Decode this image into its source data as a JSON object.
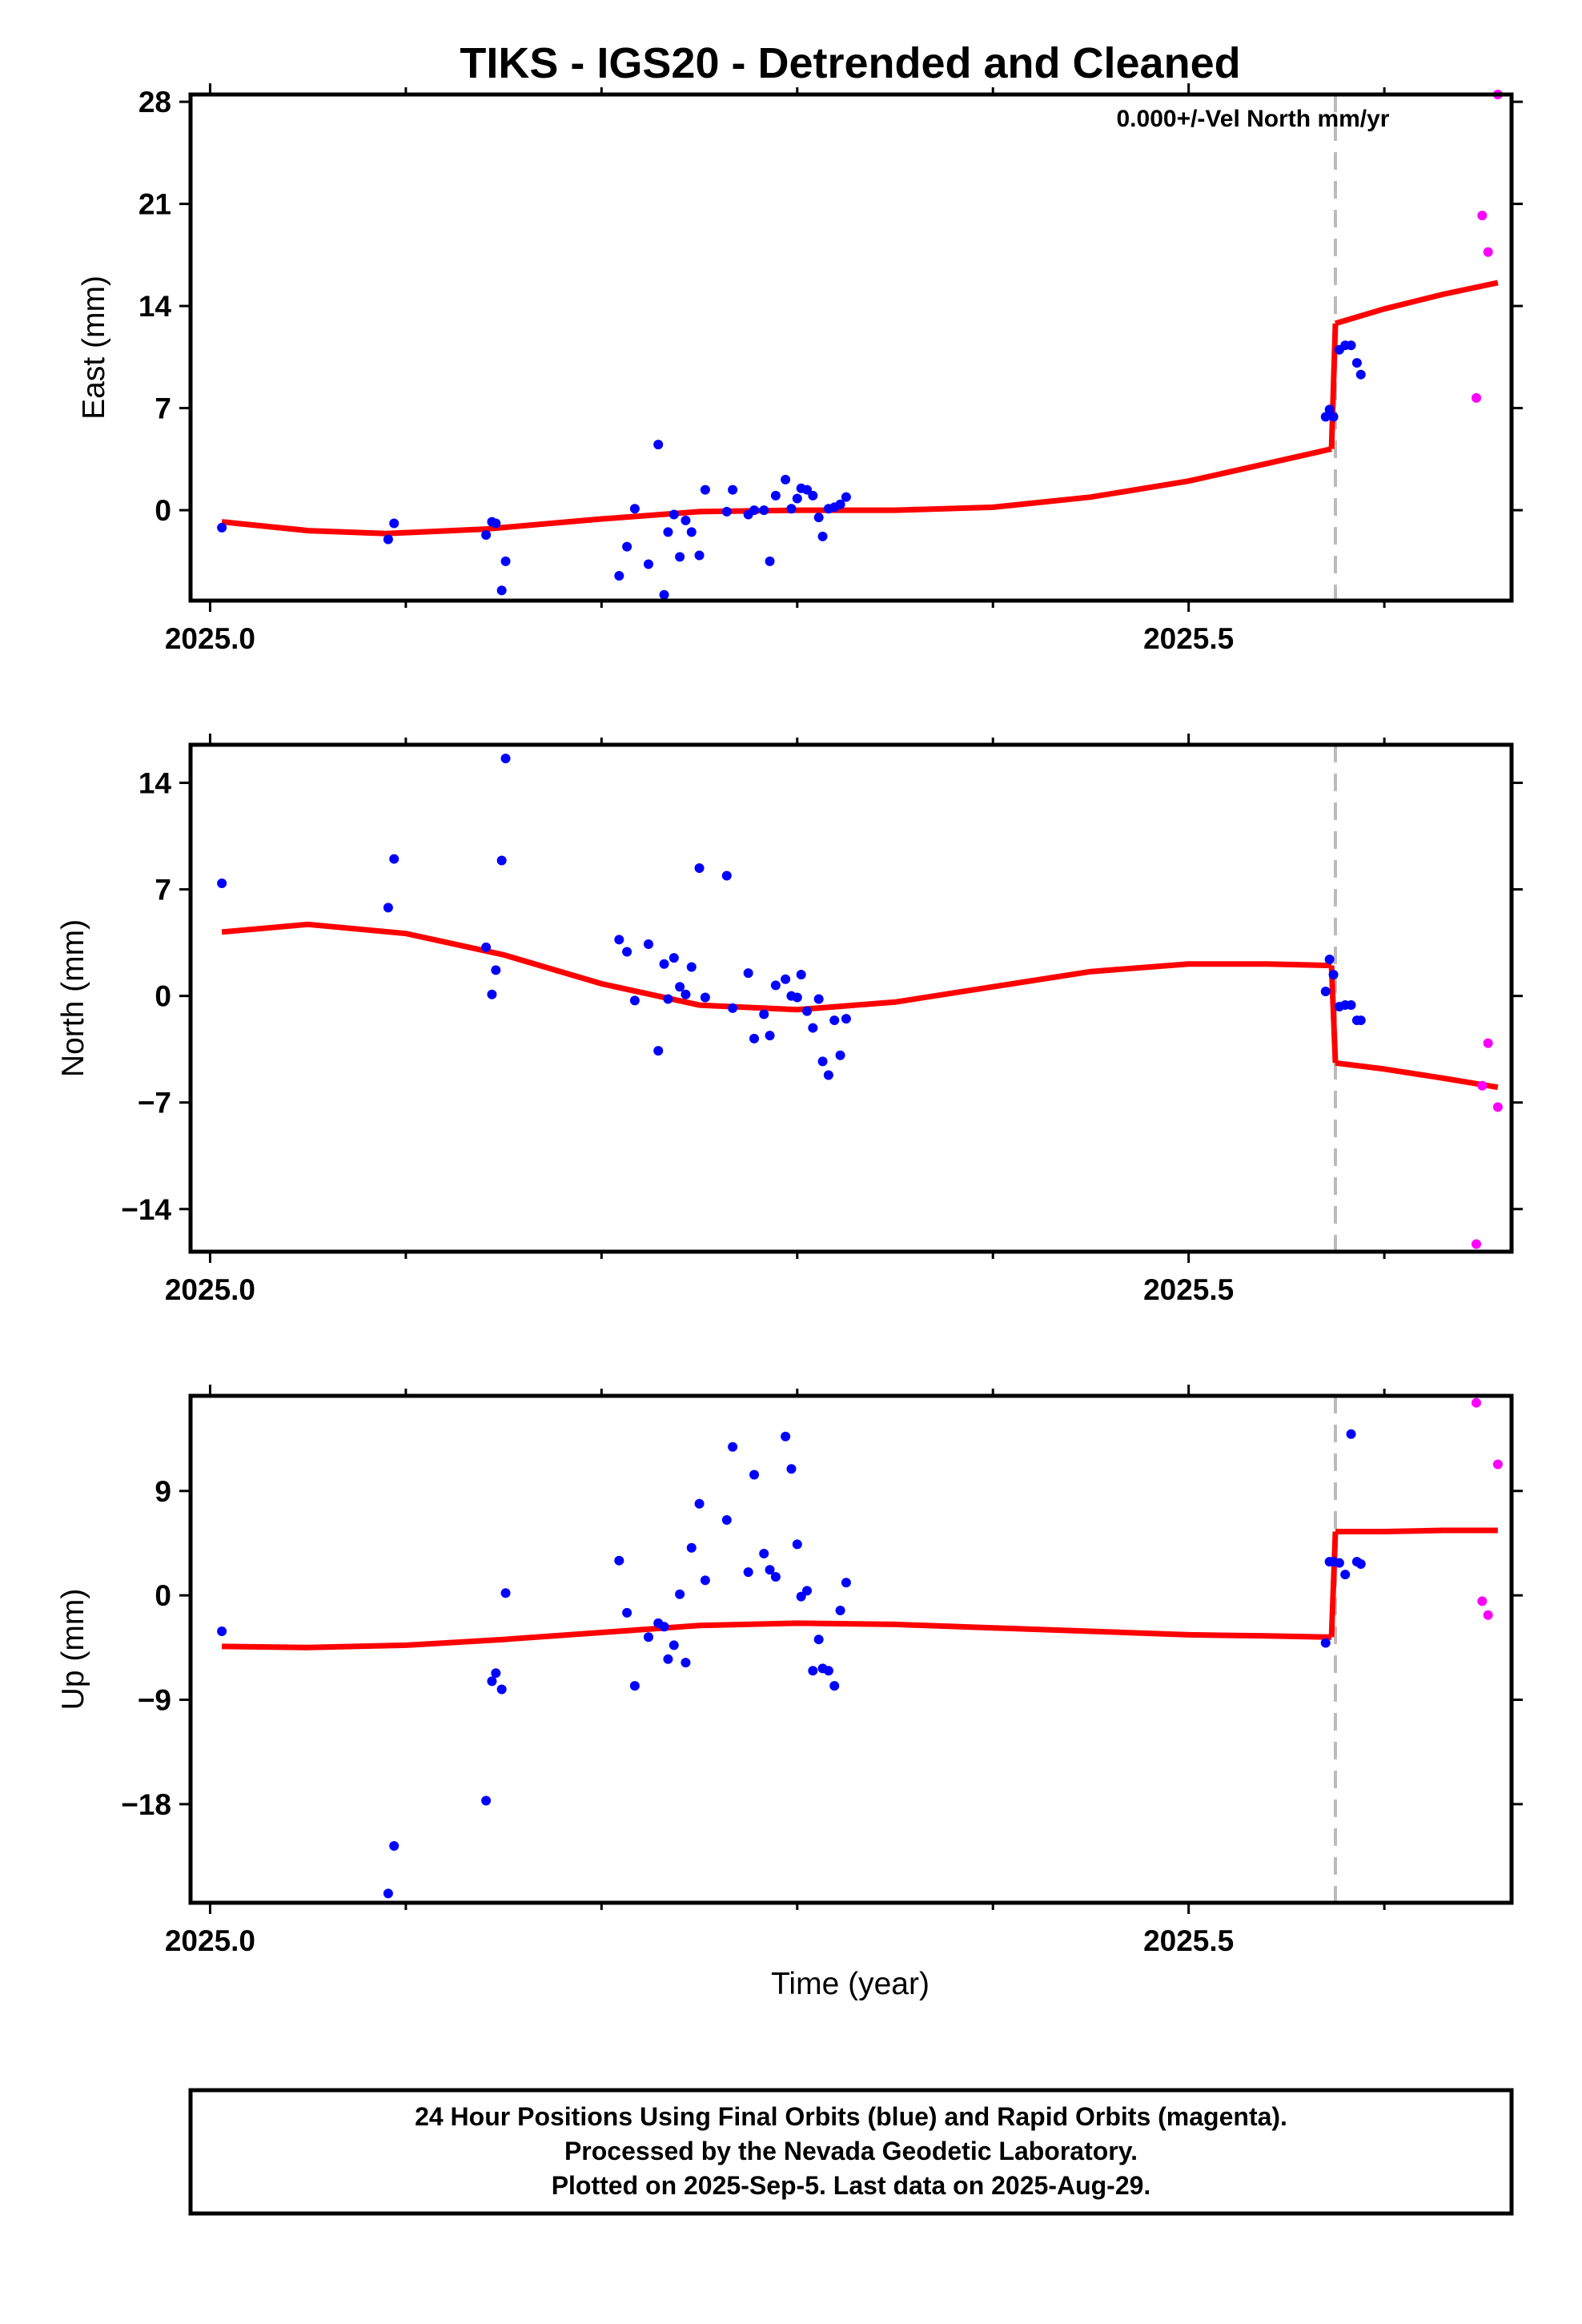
{
  "title": "TIKS - IGS20 - Detrended and Cleaned",
  "annotation": "0.000+/-Vel North mm/yr",
  "xlabel": "Time (year)",
  "footer": {
    "line1": "24 Hour Positions Using Final Orbits (blue) and Rapid Orbits (magenta).",
    "line2": "Processed by the Nevada Geodetic Laboratory.",
    "line3": "Plotted on 2025-Sep-5. Last data on 2025-Aug-29."
  },
  "colors": {
    "final": "#0000ff",
    "rapid": "#ff00ff",
    "model": "#ff0000",
    "event_line": "#bbbbbb"
  },
  "chart_data": [
    {
      "type": "scatter",
      "ylabel": "East (mm)",
      "xlim": [
        2024.99,
        2025.665
      ],
      "ylim": [
        -6.2,
        28.5
      ],
      "xticks": [
        2025.0,
        2025.5
      ],
      "xtick_labels": [
        "2025.0",
        "2025.5"
      ],
      "yticks": [
        0,
        7,
        14,
        21,
        28
      ],
      "ytick_labels": [
        "0",
        "7",
        "14",
        "21",
        "28"
      ],
      "event_x": 2025.575,
      "series": [
        {
          "kind": "final",
          "x": [
            2025.006,
            2025.091,
            2025.094,
            2025.141,
            2025.144,
            2025.146,
            2025.149,
            2025.151,
            2025.209,
            2025.213,
            2025.217,
            2025.224,
            2025.229,
            2025.232,
            2025.234,
            2025.237,
            2025.24,
            2025.243,
            2025.246,
            2025.25,
            2025.253,
            2025.264,
            2025.267,
            2025.275,
            2025.278,
            2025.283,
            2025.286,
            2025.289,
            2025.294,
            2025.297,
            2025.3,
            2025.302,
            2025.305,
            2025.308,
            2025.311,
            2025.313,
            2025.316,
            2025.319,
            2025.322,
            2025.325,
            2025.57,
            2025.572,
            2025.574,
            2025.577,
            2025.58,
            2025.583,
            2025.586,
            2025.588
          ],
          "y": [
            -1.2,
            -2.0,
            -0.9,
            -1.7,
            -0.8,
            -0.9,
            -5.5,
            -3.5,
            -4.5,
            -2.5,
            0.1,
            -3.7,
            4.5,
            -5.8,
            -1.5,
            -0.3,
            -3.2,
            -0.7,
            -1.5,
            -3.1,
            1.4,
            -0.1,
            1.4,
            -0.3,
            0.0,
            0.0,
            -3.5,
            1.0,
            2.1,
            0.1,
            0.8,
            1.5,
            1.4,
            1.0,
            -0.5,
            -1.8,
            0.1,
            0.2,
            0.4,
            0.9,
            6.4,
            6.9,
            6.4,
            11.0,
            11.3,
            11.3,
            10.1,
            9.3
          ],
          "note": ""
        },
        {
          "kind": "rapid",
          "x": [
            2025.647,
            2025.65,
            2025.653,
            2025.658
          ],
          "y": [
            7.7,
            20.2,
            17.7,
            28.5
          ]
        }
      ],
      "model": {
        "segments": [
          {
            "x": [
              2025.006,
              2025.05,
              2025.09,
              2025.14,
              2025.2,
              2025.25,
              2025.3,
              2025.35,
              2025.4,
              2025.45,
              2025.5,
              2025.54,
              2025.573
            ],
            "y": [
              -0.8,
              -1.4,
              -1.6,
              -1.3,
              -0.6,
              -0.1,
              0.0,
              0.0,
              0.2,
              0.9,
              2.0,
              3.2,
              4.2
            ]
          },
          {
            "x": [
              2025.575,
              2025.6,
              2025.63,
              2025.658
            ],
            "y": [
              12.8,
              13.8,
              14.8,
              15.6
            ]
          }
        ]
      }
    },
    {
      "type": "scatter",
      "ylabel": "North (mm)",
      "xlim": [
        2024.99,
        2025.665
      ],
      "ylim": [
        -16.8,
        16.5
      ],
      "xticks": [
        2025.0,
        2025.5
      ],
      "xtick_labels": [
        "2025.0",
        "2025.5"
      ],
      "yticks": [
        -14,
        -7,
        0,
        7,
        14
      ],
      "ytick_labels": [
        "−14",
        "−7",
        "0",
        "7",
        "14"
      ],
      "event_x": 2025.575,
      "series": [
        {
          "kind": "final",
          "x": [
            2025.006,
            2025.091,
            2025.094,
            2025.141,
            2025.144,
            2025.146,
            2025.149,
            2025.151,
            2025.209,
            2025.213,
            2025.217,
            2025.224,
            2025.229,
            2025.232,
            2025.234,
            2025.237,
            2025.24,
            2025.243,
            2025.246,
            2025.25,
            2025.253,
            2025.264,
            2025.267,
            2025.275,
            2025.278,
            2025.283,
            2025.286,
            2025.289,
            2025.294,
            2025.297,
            2025.3,
            2025.302,
            2025.305,
            2025.308,
            2025.311,
            2025.313,
            2025.316,
            2025.319,
            2025.322,
            2025.325,
            2025.57,
            2025.572,
            2025.574,
            2025.577,
            2025.58,
            2025.583,
            2025.586,
            2025.588
          ],
          "y": [
            7.4,
            5.8,
            9.0,
            3.2,
            0.1,
            1.7,
            8.9,
            15.6,
            3.7,
            2.9,
            -0.3,
            3.4,
            -3.6,
            2.1,
            -0.2,
            2.5,
            0.6,
            0.1,
            1.9,
            8.4,
            -0.1,
            7.9,
            -0.8,
            1.5,
            -2.8,
            -1.2,
            -2.6,
            0.7,
            1.1,
            0.0,
            -0.1,
            1.4,
            -1.0,
            -2.1,
            -0.2,
            -4.3,
            -5.2,
            -1.6,
            -3.9,
            -1.5,
            0.3,
            2.4,
            1.4,
            -0.7,
            -0.6,
            -0.6,
            -1.6,
            -1.6
          ],
          "note": ""
        },
        {
          "kind": "rapid",
          "x": [
            2025.647,
            2025.65,
            2025.653,
            2025.658
          ],
          "y": [
            -16.3,
            -5.9,
            -3.1,
            -7.3
          ]
        }
      ],
      "model": {
        "segments": [
          {
            "x": [
              2025.006,
              2025.05,
              2025.1,
              2025.15,
              2025.2,
              2025.25,
              2025.3,
              2025.35,
              2025.4,
              2025.45,
              2025.5,
              2025.54,
              2025.573
            ],
            "y": [
              4.2,
              4.7,
              4.1,
              2.7,
              0.8,
              -0.6,
              -0.9,
              -0.4,
              0.6,
              1.6,
              2.1,
              2.1,
              2.0
            ]
          },
          {
            "x": [
              2025.575,
              2025.6,
              2025.63,
              2025.658
            ],
            "y": [
              -4.4,
              -4.8,
              -5.4,
              -6.0
            ]
          }
        ]
      }
    },
    {
      "type": "scatter",
      "ylabel": "Up (mm)",
      "xlim": [
        2024.99,
        2025.665
      ],
      "ylim": [
        -26.5,
        17.2
      ],
      "xticks": [
        2025.0,
        2025.5
      ],
      "xtick_labels": [
        "2025.0",
        "2025.5"
      ],
      "yticks": [
        -18,
        -9,
        0,
        9
      ],
      "ytick_labels": [
        "−18",
        "−9",
        "0",
        "9"
      ],
      "event_x": 2025.575,
      "series": [
        {
          "kind": "final",
          "x": [
            2025.006,
            2025.091,
            2025.094,
            2025.141,
            2025.144,
            2025.146,
            2025.149,
            2025.151,
            2025.209,
            2025.213,
            2025.217,
            2025.224,
            2025.229,
            2025.232,
            2025.234,
            2025.237,
            2025.24,
            2025.243,
            2025.246,
            2025.25,
            2025.253,
            2025.264,
            2025.267,
            2025.275,
            2025.278,
            2025.283,
            2025.286,
            2025.289,
            2025.294,
            2025.297,
            2025.3,
            2025.302,
            2025.305,
            2025.308,
            2025.311,
            2025.313,
            2025.316,
            2025.319,
            2025.322,
            2025.325,
            2025.57,
            2025.572,
            2025.574,
            2025.577,
            2025.58,
            2025.583,
            2025.586,
            2025.588
          ],
          "y": [
            -3.1,
            -25.7,
            -21.6,
            -17.7,
            -7.4,
            -6.7,
            -8.1,
            0.2,
            3.0,
            -1.5,
            -7.8,
            -3.6,
            -2.4,
            -2.7,
            -5.5,
            -4.3,
            0.1,
            -5.8,
            4.1,
            7.9,
            1.3,
            6.5,
            12.8,
            2.0,
            10.4,
            3.6,
            2.2,
            1.6,
            13.7,
            10.9,
            4.4,
            -0.1,
            0.4,
            -6.5,
            -3.8,
            -6.3,
            -6.5,
            -7.8,
            -1.3,
            1.1,
            -4.1,
            2.9,
            2.9,
            2.8,
            1.8,
            13.9,
            2.9,
            2.7
          ],
          "note": ""
        },
        {
          "kind": "rapid",
          "x": [
            2025.647,
            2025.65,
            2025.653,
            2025.658
          ],
          "y": [
            16.6,
            -0.5,
            -1.7,
            11.3
          ]
        }
      ],
      "model": {
        "segments": [
          {
            "x": [
              2025.006,
              2025.05,
              2025.1,
              2025.15,
              2025.2,
              2025.25,
              2025.3,
              2025.35,
              2025.4,
              2025.45,
              2025.5,
              2025.54,
              2025.573
            ],
            "y": [
              -4.4,
              -4.5,
              -4.3,
              -3.8,
              -3.2,
              -2.6,
              -2.4,
              -2.5,
              -2.8,
              -3.1,
              -3.4,
              -3.5,
              -3.6
            ]
          },
          {
            "x": [
              2025.575,
              2025.6,
              2025.63,
              2025.658
            ],
            "y": [
              5.5,
              5.5,
              5.6,
              5.6
            ]
          }
        ]
      }
    }
  ]
}
